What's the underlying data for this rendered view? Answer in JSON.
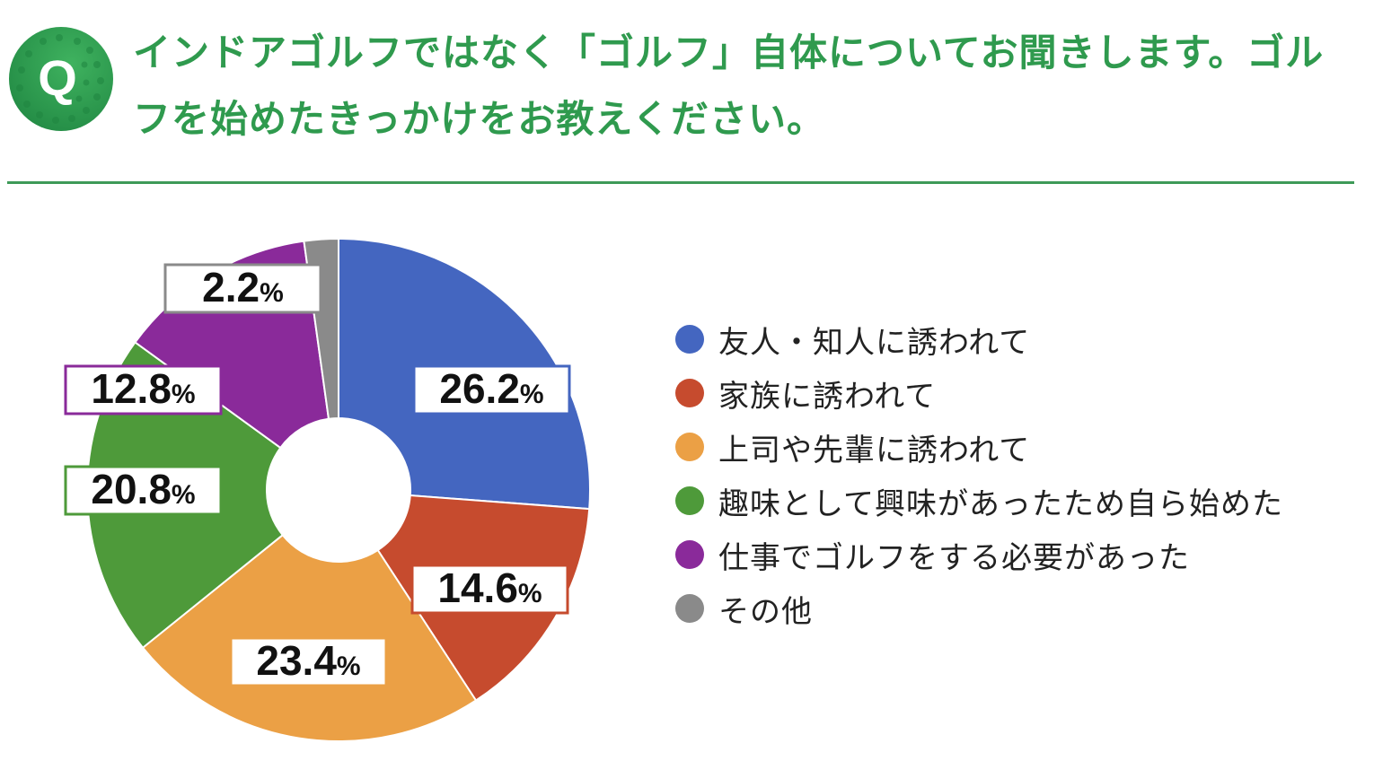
{
  "header": {
    "badge_letter": "Q",
    "question": "インドアゴルフではなく「ゴルフ」自体についてお聞きします。ゴルフを始めたきっかけをお教えください。"
  },
  "colors": {
    "accent": "#2f9a4e",
    "badge_fill": "#2e9a4c"
  },
  "chart_data": {
    "type": "pie",
    "donut": true,
    "unit": "%",
    "legend_position": "right",
    "categories": [
      "友人・知人に誘われて",
      "家族に誘われて",
      "上司や先輩に誘われて",
      "趣味として興味があったため自ら始めた",
      "仕事でゴルフをする必要があった",
      "その他"
    ],
    "values": [
      26.2,
      14.6,
      23.4,
      20.8,
      12.8,
      2.2
    ],
    "labels": [
      "26.2",
      "14.6",
      "23.4",
      "20.8",
      "12.8",
      "2.2"
    ],
    "colors": [
      "#4466c0",
      "#c64b2e",
      "#eba045",
      "#4e9a3a",
      "#8a2a9a",
      "#8a8a8a"
    ]
  }
}
